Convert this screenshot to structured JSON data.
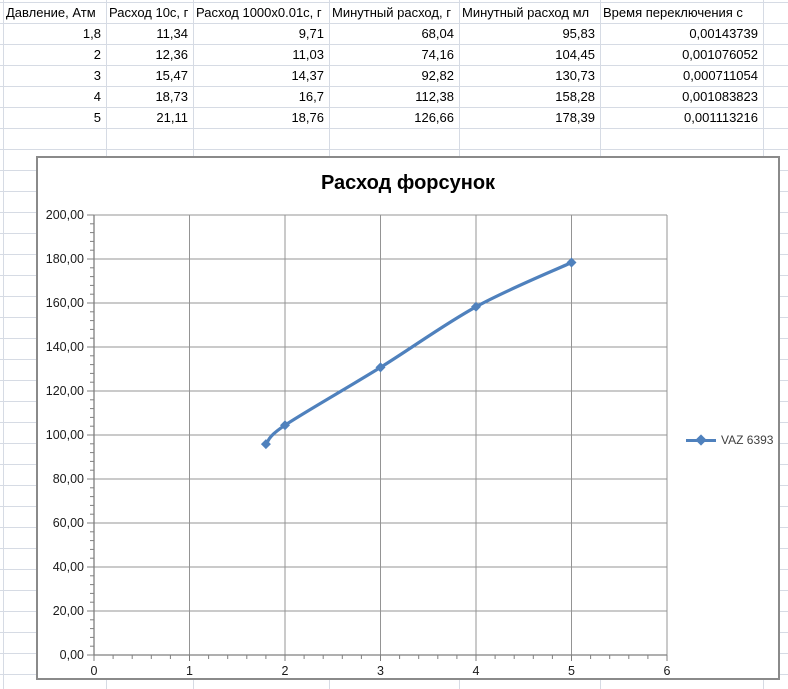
{
  "sheet": {
    "table": {
      "headers": [
        "Давление, Атм",
        "Расход 10с, г",
        "Расход 1000x0.01с, г",
        "Минутный расход, г",
        "Минутный расход мл",
        "Время переключения с"
      ],
      "rows": [
        [
          "1,8",
          "11,34",
          "9,71",
          "68,04",
          "95,83",
          "0,00143739"
        ],
        [
          "2",
          "12,36",
          "11,03",
          "74,16",
          "104,45",
          "0,001076052"
        ],
        [
          "3",
          "15,47",
          "14,37",
          "92,82",
          "130,73",
          "0,000711054"
        ],
        [
          "4",
          "18,73",
          "16,7",
          "112,38",
          "158,28",
          "0,001083823"
        ],
        [
          "5",
          "21,11",
          "18,76",
          "126,66",
          "178,39",
          "0,001113216"
        ]
      ]
    }
  },
  "chart_data": {
    "type": "line",
    "title": "Расход форсунок",
    "series": [
      {
        "name": "VAZ 6393",
        "x": [
          1.8,
          2,
          3,
          4,
          5
        ],
        "y": [
          95.83,
          104.45,
          130.73,
          158.28,
          178.39
        ],
        "color": "#4F81BD",
        "marker": "diamond",
        "smooth": true
      }
    ],
    "xlabel": "",
    "ylabel": "",
    "xlim": [
      0,
      6
    ],
    "ylim": [
      0,
      200
    ],
    "x_major": 1,
    "x_minor": 0.2,
    "y_major": 20,
    "y_minor": 4,
    "x_tick_labels": [
      "0",
      "1",
      "2",
      "3",
      "4",
      "5",
      "6"
    ],
    "y_tick_labels": [
      "0,00",
      "20,00",
      "40,00",
      "60,00",
      "80,00",
      "100,00",
      "120,00",
      "140,00",
      "160,00",
      "180,00",
      "200,00"
    ],
    "grid": true,
    "legend_position": "right"
  },
  "colors": {
    "series_blue": "#4F81BD",
    "chart_gridline": "#949494",
    "chart_axis": "#7f7f7f",
    "chart_border": "#8a8a8a",
    "sheet_gridline": "#d6dbe4",
    "tick_label": "#1a1a1a",
    "legend_text": "#3f3f3f"
  }
}
